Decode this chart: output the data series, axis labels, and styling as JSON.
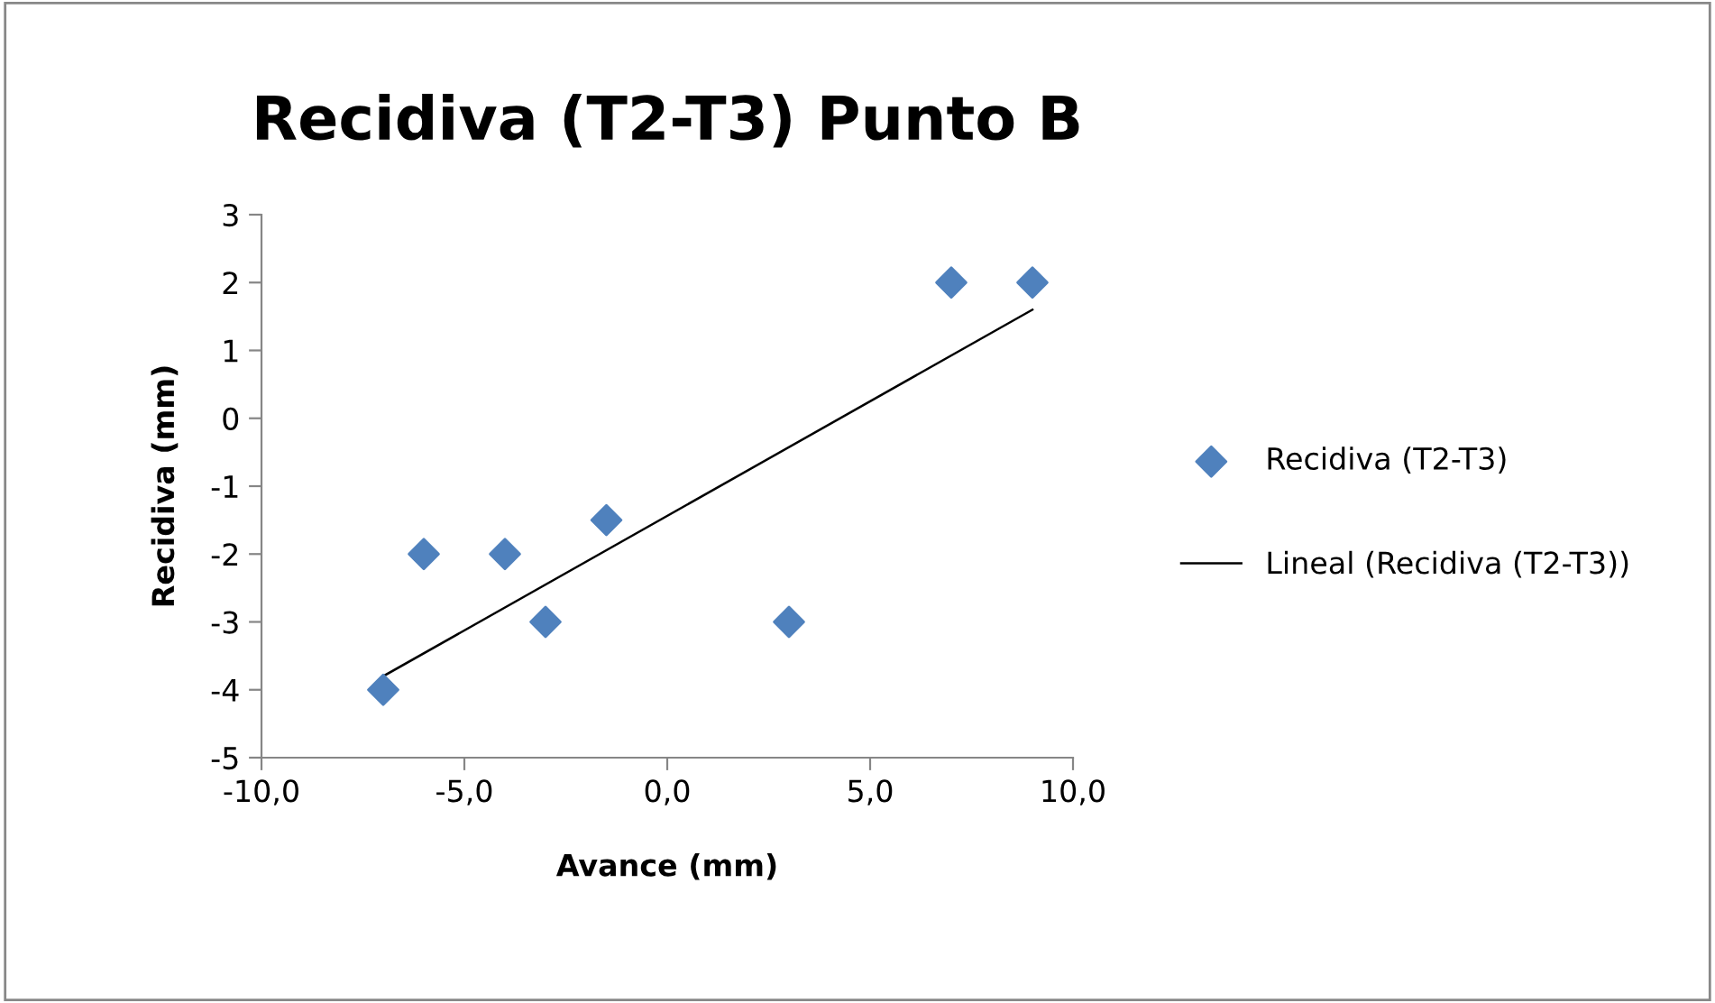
{
  "chart_data": {
    "type": "scatter",
    "title": "Recidiva (T2-T3) Punto B",
    "xlabel": "Avance (mm)",
    "ylabel": "Recidiva (mm)",
    "series": [
      {
        "name": "Recidiva (T2-T3)",
        "color": "#4f81bd",
        "marker": "diamond",
        "x": [
          -7,
          -6,
          -4,
          -3,
          -1.5,
          3,
          7,
          9
        ],
        "values": [
          -4,
          -2,
          -2,
          -3,
          -1.5,
          -3,
          2,
          2
        ]
      },
      {
        "name": "Lineal (Recidiva (T2-T3))",
        "type": "line",
        "color": "#000000",
        "marker": "none",
        "line_style": "solid",
        "x": [
          -7,
          9
        ],
        "values": [
          -3.8,
          1.6
        ]
      }
    ],
    "xlim": [
      -10,
      10
    ],
    "xticks": [
      {
        "value": -10,
        "label": "-10,0"
      },
      {
        "value": -5,
        "label": "-5,0"
      },
      {
        "value": 0,
        "label": "0,0"
      },
      {
        "value": 5,
        "label": "5,0"
      },
      {
        "value": 10,
        "label": "10,0"
      }
    ],
    "ylim": [
      -5,
      3
    ],
    "yticks": [
      -5,
      -4,
      -3,
      -2,
      -1,
      0,
      1,
      2,
      3
    ],
    "grid": false,
    "legend": "right"
  }
}
